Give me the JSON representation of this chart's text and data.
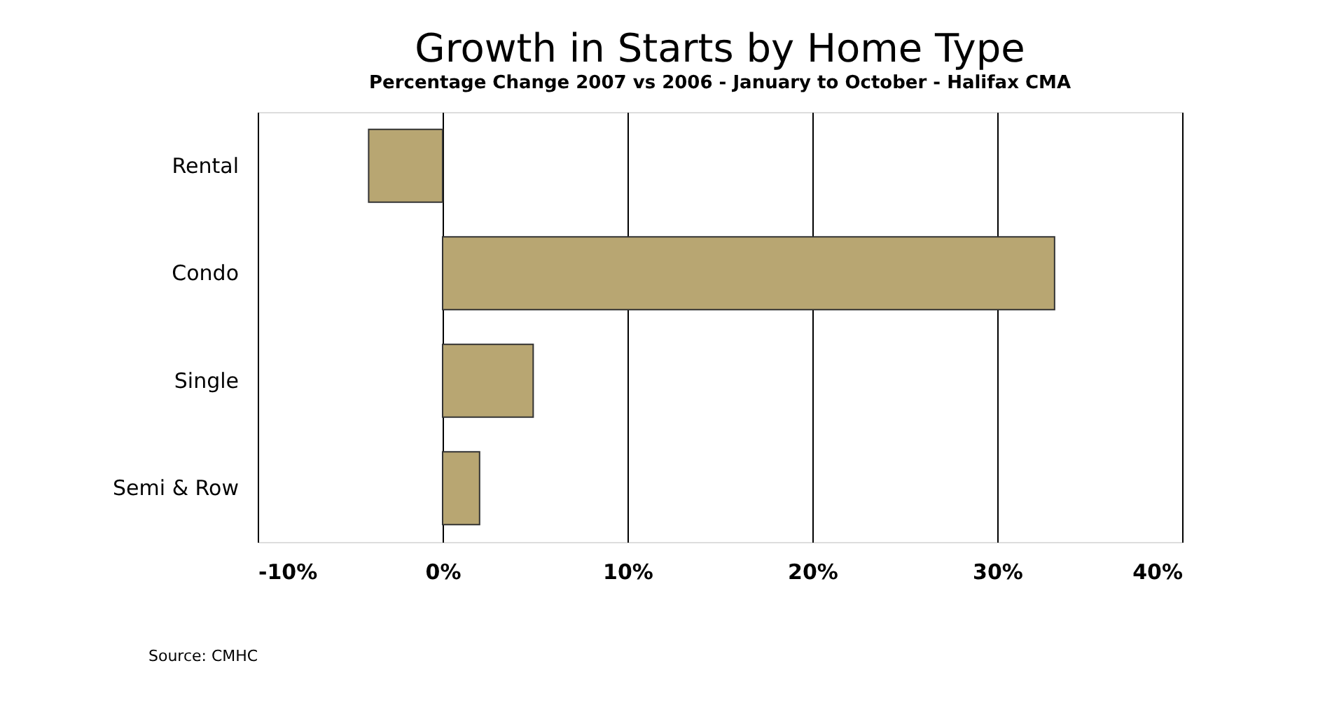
{
  "chart_data": {
    "type": "bar",
    "orientation": "horizontal",
    "title": "Growth in Starts by Home Type",
    "subtitle": "Percentage Change 2007 vs 2006 - January to October - Halifax CMA",
    "categories": [
      "Rental",
      "Condo",
      "Single",
      "Semi & Row"
    ],
    "values": [
      -4.0,
      33.1,
      4.9,
      2.0
    ],
    "color": "#b8a672",
    "xlim": [
      -10,
      40
    ],
    "xticks": [
      {
        "value": -10,
        "label": "-10%"
      },
      {
        "value": 0,
        "label": "0%"
      },
      {
        "value": 10,
        "label": "10%"
      },
      {
        "value": 20,
        "label": "20%"
      },
      {
        "value": 30,
        "label": "30%"
      },
      {
        "value": 40,
        "label": "40%"
      }
    ],
    "grid": "x",
    "annotations": [
      "Source: CMHC"
    ]
  }
}
